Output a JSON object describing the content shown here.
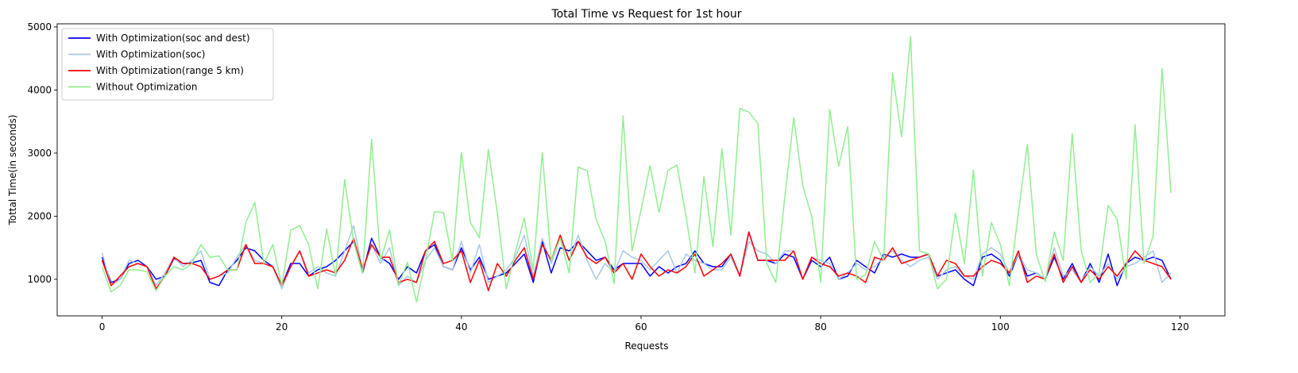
{
  "chart_data": {
    "type": "line",
    "title": "Total Time vs Request for 1st hour",
    "xlabel": "Requests",
    "ylabel": "Tottal Time(in seconds)",
    "xlim": [
      -5,
      125
    ],
    "ylim": [
      420,
      5050
    ],
    "xticks": [
      0,
      20,
      40,
      60,
      80,
      100,
      120
    ],
    "yticks": [
      1000,
      2000,
      3000,
      4000,
      5000
    ],
    "grid": false,
    "legend_position": "top-left",
    "series": [
      {
        "name": "With Optimization(soc and dest)",
        "color": "#0000ff",
        "values": [
          1350,
          950,
          1000,
          1250,
          1300,
          1200,
          1000,
          1050,
          1330,
          1250,
          1260,
          1300,
          950,
          900,
          1150,
          1300,
          1500,
          1450,
          1300,
          1200,
          900,
          1250,
          1250,
          1050,
          1150,
          1200,
          1300,
          1450,
          1600,
          1100,
          1650,
          1350,
          1250,
          1000,
          1200,
          1100,
          1450,
          1550,
          1200,
          1150,
          1500,
          1150,
          1350,
          1000,
          1050,
          1100,
          1250,
          1400,
          950,
          1600,
          1100,
          1500,
          1450,
          1600,
          1450,
          1300,
          1350,
          1150,
          1250,
          1250,
          1250,
          1050,
          1200,
          1100,
          1200,
          1250,
          1450,
          1250,
          1200,
          1200,
          1400,
          1050,
          1750,
          1300,
          1300,
          1250,
          1400,
          1350,
          1000,
          1300,
          1200,
          1350,
          1000,
          1050,
          1300,
          1200,
          1100,
          1400,
          1350,
          1400,
          1350,
          1350,
          1400,
          1050,
          1100,
          1150,
          1000,
          900,
          1350,
          1400,
          1300,
          1050,
          1400,
          1050,
          1100,
          1000,
          1350,
          1000,
          1250,
          950,
          1250,
          950,
          1400,
          900,
          1250,
          1350,
          1300,
          1350,
          1300,
          1000
        ]
      },
      {
        "name": "With Optimization(soc)",
        "color": "#a6c8e8",
        "values": [
          1420,
          900,
          1000,
          1300,
          1250,
          1200,
          900,
          1100,
          1350,
          1200,
          1300,
          1450,
          1000,
          1050,
          1100,
          1350,
          1550,
          1300,
          1250,
          1200,
          850,
          1200,
          1450,
          1100,
          1200,
          1100,
          1050,
          1450,
          1850,
          1150,
          1550,
          1250,
          1500,
          900,
          1050,
          950,
          1300,
          1500,
          1200,
          1150,
          1600,
          1100,
          1550,
          950,
          1050,
          1150,
          1350,
          1700,
          1050,
          1650,
          1250,
          1650,
          1300,
          1700,
          1300,
          1000,
          1250,
          1100,
          1450,
          1350,
          1300,
          1150,
          1300,
          1450,
          1100,
          1400,
          1300,
          1250,
          1150,
          1150,
          1350,
          1050,
          1600,
          1450,
          1400,
          1250,
          1450,
          1450,
          1000,
          1350,
          1300,
          1250,
          1000,
          1100,
          1250,
          1150,
          1200,
          1350,
          1450,
          1300,
          1200,
          1300,
          1350,
          1000,
          1150,
          1200,
          1050,
          1000,
          1400,
          1500,
          1400,
          1100,
          1400,
          1150,
          1100,
          1000,
          1500,
          1050,
          1150,
          950,
          1200,
          1050,
          1250,
          1000,
          1200,
          1250,
          1350,
          1450,
          950,
          1100
        ]
      },
      {
        "name": "With Optimization(range 5 km)",
        "color": "#ff0000",
        "values": [
          1300,
          900,
          1050,
          1200,
          1250,
          1200,
          850,
          1050,
          1350,
          1250,
          1250,
          1200,
          1000,
          1050,
          1150,
          1150,
          1550,
          1250,
          1250,
          1200,
          900,
          1200,
          1450,
          1050,
          1100,
          1150,
          1100,
          1300,
          1650,
          1150,
          1550,
          1350,
          1350,
          950,
          1000,
          950,
          1450,
          1600,
          1250,
          1300,
          1450,
          950,
          1300,
          820,
          1250,
          1050,
          1300,
          1500,
          1000,
          1550,
          1300,
          1700,
          1300,
          1600,
          1350,
          1250,
          1350,
          1100,
          1250,
          1000,
          1400,
          1200,
          1050,
          1150,
          1100,
          1200,
          1400,
          1050,
          1150,
          1250,
          1400,
          1050,
          1750,
          1300,
          1300,
          1300,
          1300,
          1450,
          1000,
          1350,
          1250,
          1200,
          1050,
          1100,
          1050,
          950,
          1350,
          1300,
          1500,
          1250,
          1300,
          1350,
          1400,
          1050,
          1300,
          1250,
          1050,
          1050,
          1200,
          1300,
          1250,
          1100,
          1450,
          950,
          1050,
          1000,
          1400,
          950,
          1200,
          950,
          1150,
          1000,
          1200,
          1050,
          1250,
          1450,
          1300,
          1250,
          1200,
          1000
        ]
      },
      {
        "name": "Without Optimization",
        "color": "#90ee90",
        "values": [
          1200,
          800,
          900,
          1150,
          1150,
          1120,
          820,
          1050,
          1200,
          1150,
          1250,
          1550,
          1350,
          1370,
          1150,
          1150,
          1900,
          2220,
          1250,
          1550,
          900,
          1780,
          1850,
          1550,
          850,
          1800,
          1050,
          2580,
          1600,
          1100,
          3220,
          1300,
          1780,
          900,
          1270,
          640,
          1300,
          2070,
          2060,
          1300,
          3010,
          1900,
          1660,
          3060,
          2050,
          850,
          1430,
          1970,
          1150,
          3010,
          1300,
          1650,
          1100,
          2780,
          2720,
          1950,
          1600,
          930,
          3590,
          1450,
          2100,
          2800,
          2060,
          2730,
          2810,
          2000,
          1100,
          2630,
          1520,
          3070,
          1700,
          3710,
          3650,
          3470,
          1250,
          950,
          2300,
          3560,
          2480,
          2000,
          950,
          3690,
          2790,
          3420,
          1000,
          1070,
          1600,
          1300,
          4270,
          3260,
          4850,
          1450,
          1400,
          850,
          1000,
          2050,
          1250,
          2730,
          1050,
          1900,
          1550,
          900,
          2050,
          3140,
          1400,
          960,
          1750,
          1300,
          3310,
          1450,
          950,
          1100,
          2170,
          1950,
          1000,
          3450,
          1250,
          1680,
          4340,
          2370
        ]
      }
    ]
  }
}
